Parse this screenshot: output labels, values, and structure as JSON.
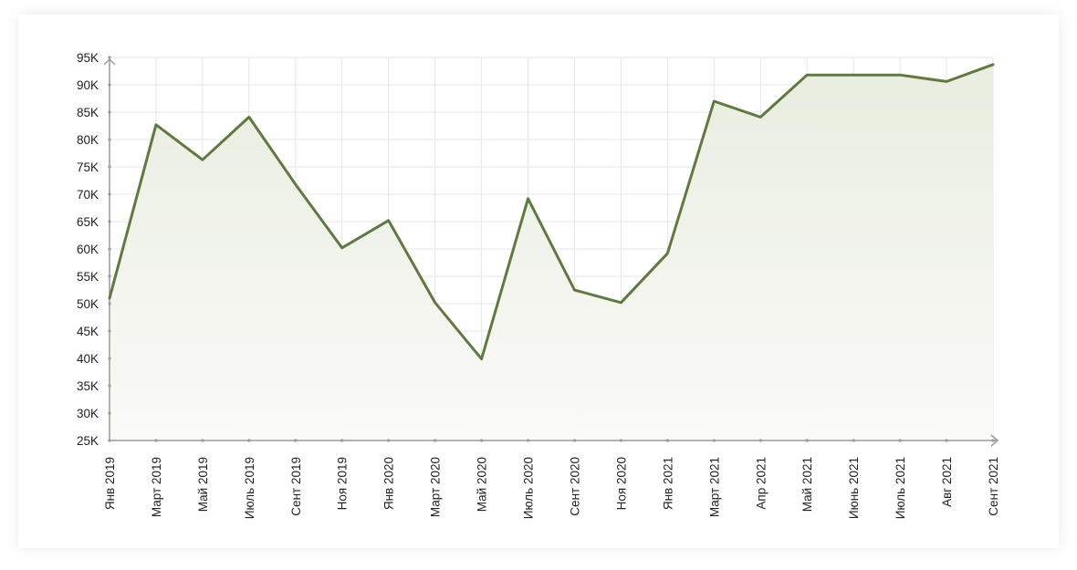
{
  "chart_data": {
    "type": "area",
    "title": "",
    "xlabel": "",
    "ylabel": "",
    "categories": [
      "Янв 2019",
      "Март 2019",
      "Май 2019",
      "Июль 2019",
      "Сент 2019",
      "Ноя 2019",
      "Янв 2020",
      "Март 2020",
      "Май 2020",
      "Июль 2020",
      "Сент 2020",
      "Ноя 2020",
      "Янв 2021",
      "Март 2021",
      "Апр 2021",
      "Май 2021",
      "Июнь 2021",
      "Июль 2021",
      "Авг 2021",
      "Сент 2021"
    ],
    "values": [
      51000,
      82700,
      76300,
      84100,
      71800,
      60200,
      65200,
      50200,
      39900,
      69200,
      52500,
      50200,
      59200,
      87000,
      84100,
      91800,
      91800,
      91800,
      90600,
      93700
    ],
    "ylim": [
      25000,
      95000
    ],
    "yticks": [
      "25K",
      "30K",
      "35K",
      "40K",
      "45K",
      "50K",
      "55K",
      "60K",
      "65K",
      "70K",
      "75K",
      "80K",
      "85K",
      "90K",
      "95K"
    ],
    "grid": true,
    "colors": {
      "line": "#5f7a3e",
      "fill_top": "#e8eddf",
      "fill_bottom": "#fafaf8",
      "grid": "#e6e6e6",
      "axis": "#9a9a9a"
    }
  }
}
